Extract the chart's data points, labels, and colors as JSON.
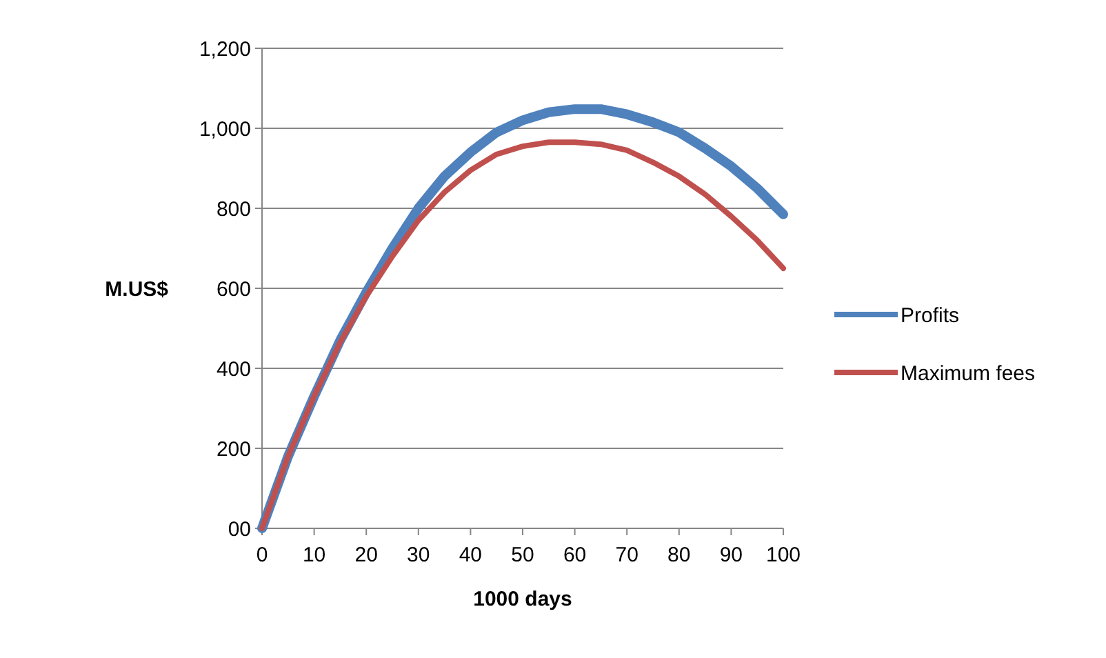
{
  "chart_data": {
    "type": "line",
    "xlabel": "1000 days",
    "ylabel": "M.US$",
    "x": [
      0,
      5,
      10,
      15,
      20,
      25,
      30,
      35,
      40,
      45,
      50,
      55,
      60,
      65,
      70,
      75,
      80,
      85,
      90,
      95,
      100
    ],
    "series": [
      {
        "name": "Profits",
        "color": "#4f81bd",
        "values": [
          0,
          180,
          330,
          470,
          590,
          700,
          800,
          880,
          940,
          990,
          1020,
          1040,
          1048,
          1048,
          1035,
          1015,
          990,
          950,
          905,
          850,
          785
        ]
      },
      {
        "name": "Maximum fees",
        "color": "#c0504d",
        "values": [
          0,
          180,
          330,
          465,
          580,
          680,
          770,
          840,
          895,
          935,
          955,
          965,
          965,
          960,
          945,
          915,
          880,
          835,
          780,
          720,
          650
        ]
      }
    ],
    "xlim": [
      0,
      100
    ],
    "xticks": [
      0,
      10,
      20,
      30,
      40,
      50,
      60,
      70,
      80,
      90,
      100
    ],
    "ylim": [
      0,
      1200
    ],
    "yticks": [
      {
        "value": 0,
        "label": "00"
      },
      200,
      400,
      600,
      800,
      {
        "value": 1000,
        "label": "1,000"
      },
      {
        "value": 1200,
        "label": "1,200"
      }
    ],
    "grid": "y",
    "legend": "right",
    "marker": "none",
    "line_style": "solid"
  }
}
